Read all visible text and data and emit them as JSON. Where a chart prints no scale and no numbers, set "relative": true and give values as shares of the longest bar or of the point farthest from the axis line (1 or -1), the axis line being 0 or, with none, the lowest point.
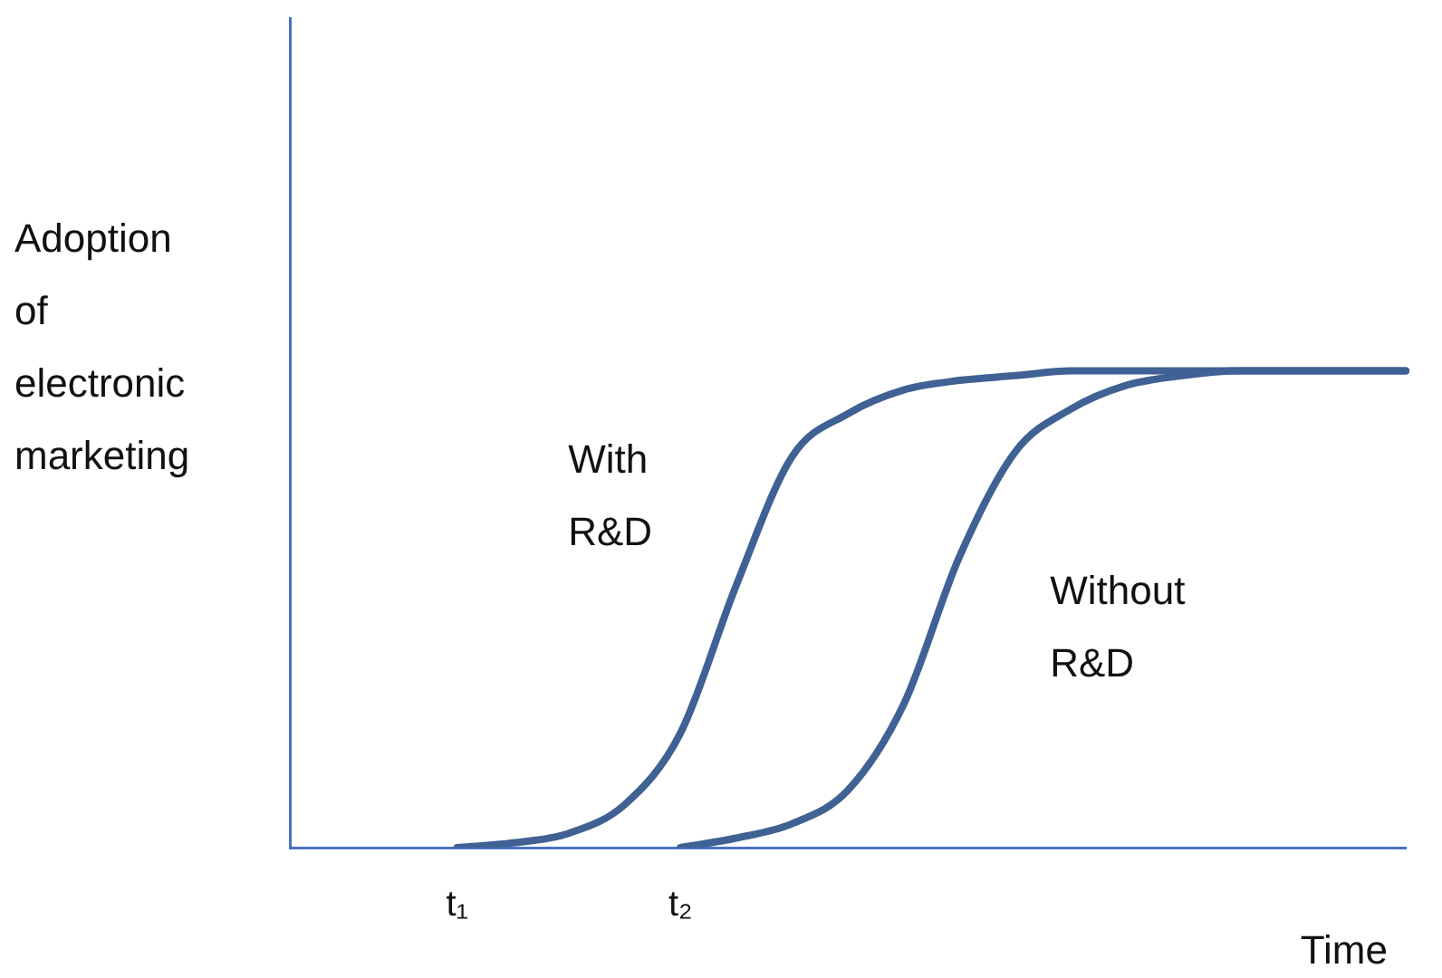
{
  "chart_data": {
    "type": "line",
    "relative": true,
    "xlabel": "Time",
    "ylabel": "Adoption of electronic marketing",
    "categories": [
      null,
      null,
      null,
      "t₁",
      null,
      null,
      null,
      "t₂",
      null,
      null,
      null,
      null,
      null,
      null,
      null,
      null,
      null,
      null,
      null,
      null,
      null
    ],
    "series": [
      {
        "name": "With R&D",
        "color": "#3f6193",
        "values": [
          null,
          null,
          null,
          0,
          0.01,
          0.03,
          0.09,
          0.24,
          0.55,
          0.82,
          0.91,
          0.96,
          0.98,
          0.99,
          1,
          1,
          1,
          1,
          1,
          1,
          1
        ]
      },
      {
        "name": "Without R&D",
        "color": "#3f6193",
        "values": [
          null,
          null,
          null,
          null,
          null,
          null,
          null,
          0,
          0.02,
          0.05,
          0.12,
          0.3,
          0.61,
          0.83,
          0.92,
          0.97,
          0.99,
          1,
          1,
          1,
          1
        ]
      }
    ],
    "grid": false,
    "legend": false,
    "marker": "none",
    "line_style": "solid"
  }
}
